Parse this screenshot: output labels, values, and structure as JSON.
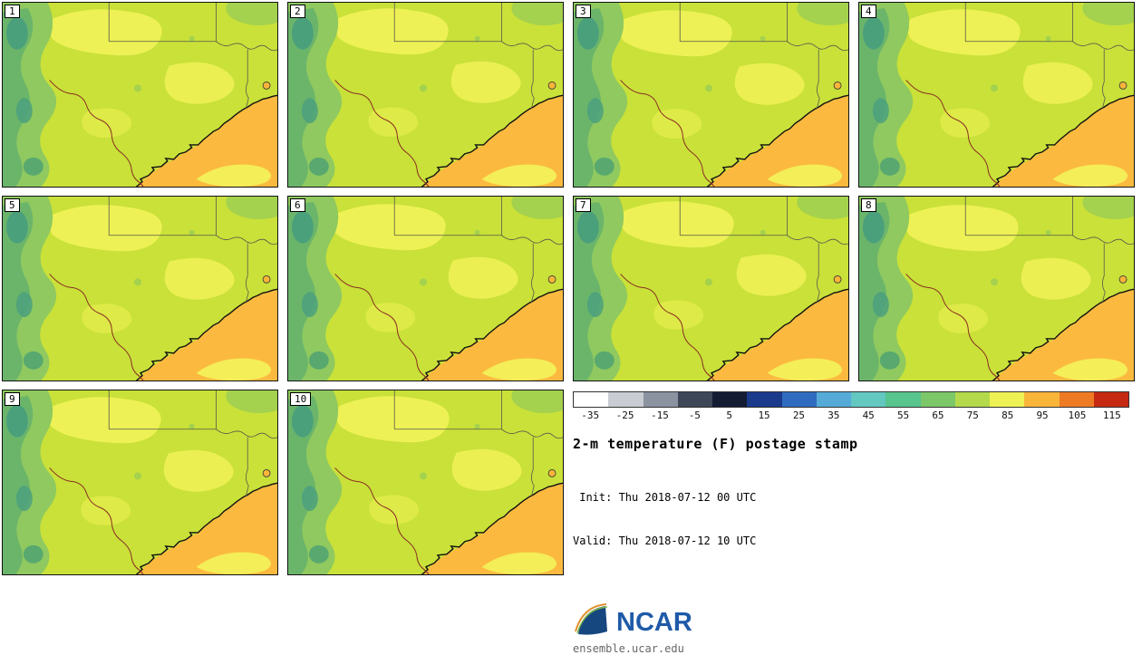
{
  "panels": [
    {
      "label": "1"
    },
    {
      "label": "2"
    },
    {
      "label": "3"
    },
    {
      "label": "4"
    },
    {
      "label": "5"
    },
    {
      "label": "6"
    },
    {
      "label": "7"
    },
    {
      "label": "8"
    },
    {
      "label": "9"
    },
    {
      "label": "10"
    }
  ],
  "legend": {
    "title": "2-m temperature (F) postage stamp",
    "init_line": " Init: Thu 2018-07-12 00 UTC",
    "valid_line": "Valid: Thu 2018-07-12 10 UTC"
  },
  "colorbar": {
    "ticks": [
      "-35",
      "-25",
      "-15",
      "-5",
      "5",
      "15",
      "25",
      "35",
      "45",
      "55",
      "65",
      "75",
      "85",
      "95",
      "105",
      "115"
    ],
    "colors": [
      "#ffffff",
      "#c9cdd3",
      "#8b93a1",
      "#3d4757",
      "#141c34",
      "#1a3a8c",
      "#2f6cc0",
      "#55aad8",
      "#62c8c0",
      "#58c48e",
      "#7cc768",
      "#b4da4c",
      "#eef153",
      "#f9b53a",
      "#ee7a24",
      "#c52912"
    ]
  },
  "map_colors": {
    "base": "#c9e139",
    "warm_patch": "#eef155",
    "green_medium": "#8fc95f",
    "green_dark": "#6bb56b",
    "green_cool_spot": "#4ba07c",
    "gulf": "#fbba3f",
    "gulf_hot_spot": "#f4ee58",
    "coastline": "#111111",
    "state_border": "#55584a",
    "rio_grande": "#8a2f22"
  },
  "branding": {
    "logo": "NCAR",
    "site": "ensemble.ucar.edu"
  }
}
